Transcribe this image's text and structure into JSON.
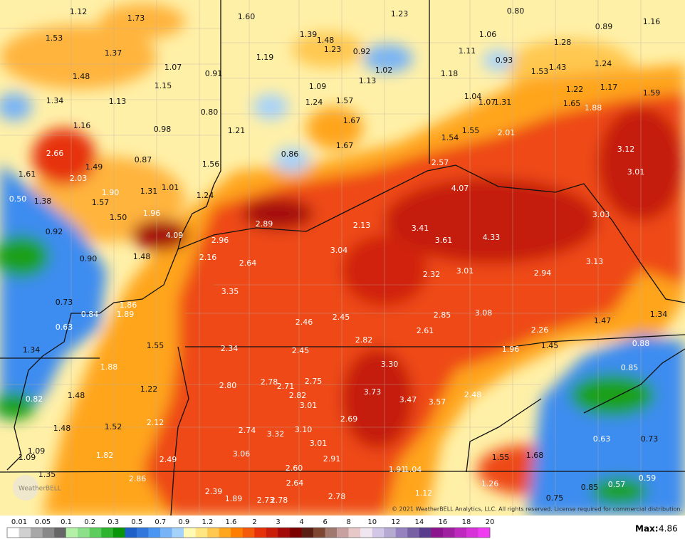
{
  "map": {
    "labels": [
      "1.12",
      "1.73",
      "1.60",
      "1.23",
      "0.80",
      "1.16",
      "0.89",
      "1.53",
      "1.37",
      "1.39",
      "1.48",
      "1.23",
      "0.92",
      "1.06",
      "1.28",
      "1.19",
      "1.11",
      "0.93",
      "1.24",
      "1.53",
      "1.43",
      "1.07",
      "0.91",
      "1.02",
      "1.18",
      "1.13",
      "1.48",
      "1.15",
      "1.09",
      "1.22",
      "1.17",
      "1.59",
      "1.34",
      "1.13",
      "1.24",
      "1.57",
      "1.04",
      "1.07",
      "1.31",
      "1.65",
      "1.88",
      "0.80",
      "1.16",
      "0.98",
      "1.21",
      "1.67",
      "1.55",
      "2.01",
      "1.54",
      "2.66",
      "0.87",
      "0.86",
      "1.67",
      "1.56",
      "3.12",
      "2.57",
      "1.61",
      "1.49",
      "2.03",
      "1.01",
      "3.01",
      "0.50",
      "1.38",
      "1.90",
      "1.31",
      "1.24",
      "4.07",
      "1.57",
      "1.50",
      "1.96",
      "2.89",
      "2.13",
      "3.03",
      "0.92",
      "4.09",
      "2.96",
      "3.41",
      "3.61",
      "4.33",
      "0.90",
      "1.48",
      "2.16",
      "2.64",
      "3.04",
      "3.13",
      "2.32",
      "3.01",
      "2.94",
      "3.35",
      "0.73",
      "0.84",
      "1.86",
      "1.89",
      "0.63",
      "2.46",
      "2.45",
      "2.85",
      "3.08",
      "1.47",
      "1.34",
      "2.61",
      "2.82",
      "2.26",
      "1.55",
      "1.34",
      "2.34",
      "2.45",
      "1.96",
      "1.45",
      "0.88",
      "1.88",
      "3.30",
      "0.85",
      "1.22",
      "2.80",
      "2.78",
      "2.71",
      "2.75",
      "2.82",
      "3.73",
      "1.48",
      "0.82",
      "3.01",
      "3.47",
      "3.57",
      "2.48",
      "1.48",
      "1.52",
      "2.12",
      "2.69",
      "2.74",
      "3.32",
      "3.10",
      "1.09",
      "1.09",
      "1.82",
      "2.49",
      "3.06",
      "3.01",
      "2.91",
      "0.63",
      "0.73",
      "1.55",
      "1.68",
      "1.35",
      "2.86",
      "2.60",
      "1.91",
      "1.04",
      "0.59",
      "2.64",
      "1.26",
      "0.85",
      "0.57",
      "2.39",
      "1.89",
      "2.78",
      "1.12",
      "2.73",
      "2.78",
      "0.75"
    ]
  },
  "legend": {
    "labels": [
      "0.01",
      "0.05",
      "0.1",
      "0.2",
      "0.3",
      "0.5",
      "0.7",
      "0.9",
      "1.2",
      "1.6",
      "2",
      "3",
      "4",
      "6",
      "8",
      "10",
      "12",
      "14",
      "16",
      "18",
      "20"
    ]
  },
  "max": {
    "label": "Max:",
    "value": "4.86"
  },
  "copyright": "© 2021 WeatherBELL Analytics, LLC. All rights reserved. License required for commercial distribution.",
  "logo": "WeatherBELL"
}
